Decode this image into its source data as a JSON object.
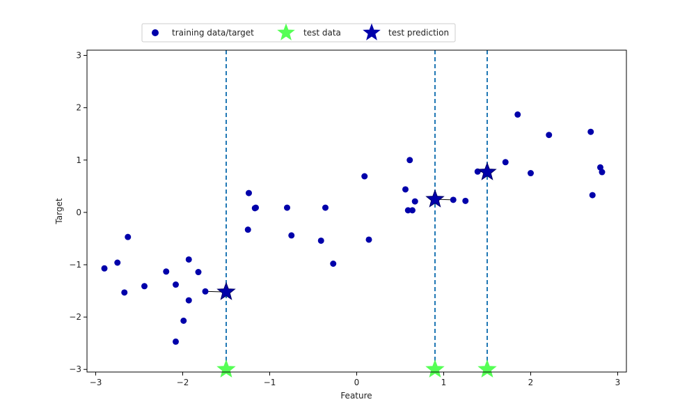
{
  "chart_data": {
    "type": "scatter",
    "title": "",
    "xlabel": "Feature",
    "ylabel": "Target",
    "xlim": [
      -3.1,
      3.1
    ],
    "ylim": [
      -3.05,
      3.1
    ],
    "xticks": [
      {
        "value": -3,
        "label": "−3"
      },
      {
        "value": -2,
        "label": "−2"
      },
      {
        "value": -1,
        "label": "−1"
      },
      {
        "value": 0,
        "label": "0"
      },
      {
        "value": 1,
        "label": "1"
      },
      {
        "value": 2,
        "label": "2"
      },
      {
        "value": 3,
        "label": "3"
      }
    ],
    "yticks": [
      {
        "value": -3,
        "label": "−3"
      },
      {
        "value": -2,
        "label": "−2"
      },
      {
        "value": -1,
        "label": "−1"
      },
      {
        "value": 0,
        "label": "0"
      },
      {
        "value": 1,
        "label": "1"
      },
      {
        "value": 2,
        "label": "2"
      },
      {
        "value": 3,
        "label": "3"
      }
    ],
    "grid": false,
    "legend_position": "top-center",
    "legend": [
      {
        "label": "training data/target",
        "marker": "circle",
        "color": "#0000aa"
      },
      {
        "label": "test data",
        "marker": "star",
        "color": "#55ff55"
      },
      {
        "label": "test prediction",
        "marker": "star",
        "color": "#0000aa"
      }
    ],
    "training_data": [
      {
        "x": -2.9,
        "y": -1.07
      },
      {
        "x": -2.75,
        "y": -0.96
      },
      {
        "x": -2.67,
        "y": -1.53
      },
      {
        "x": -2.63,
        "y": -0.47
      },
      {
        "x": -2.44,
        "y": -1.41
      },
      {
        "x": -2.19,
        "y": -1.13
      },
      {
        "x": -2.08,
        "y": -1.38
      },
      {
        "x": -2.08,
        "y": -2.47
      },
      {
        "x": -1.99,
        "y": -2.07
      },
      {
        "x": -1.93,
        "y": -0.9
      },
      {
        "x": -1.93,
        "y": -1.68
      },
      {
        "x": -1.82,
        "y": -1.14
      },
      {
        "x": -1.74,
        "y": -1.51
      },
      {
        "x": -1.24,
        "y": 0.37
      },
      {
        "x": -1.25,
        "y": -0.33
      },
      {
        "x": -1.17,
        "y": 0.08
      },
      {
        "x": -1.16,
        "y": 0.09
      },
      {
        "x": -0.8,
        "y": 0.09
      },
      {
        "x": -0.75,
        "y": -0.44
      },
      {
        "x": -0.41,
        "y": -0.54
      },
      {
        "x": -0.36,
        "y": 0.09
      },
      {
        "x": -0.27,
        "y": -0.98
      },
      {
        "x": 0.09,
        "y": 0.69
      },
      {
        "x": 0.14,
        "y": -0.52
      },
      {
        "x": 0.56,
        "y": 0.44
      },
      {
        "x": 0.59,
        "y": 0.04
      },
      {
        "x": 0.61,
        "y": 1.0
      },
      {
        "x": 0.64,
        "y": 0.04
      },
      {
        "x": 0.67,
        "y": 0.21
      },
      {
        "x": 1.11,
        "y": 0.24
      },
      {
        "x": 1.25,
        "y": 0.22
      },
      {
        "x": 1.39,
        "y": 0.78
      },
      {
        "x": 1.71,
        "y": 0.96
      },
      {
        "x": 1.85,
        "y": 1.87
      },
      {
        "x": 2.0,
        "y": 0.75
      },
      {
        "x": 2.21,
        "y": 1.48
      },
      {
        "x": 2.69,
        "y": 1.54
      },
      {
        "x": 2.71,
        "y": 0.33
      },
      {
        "x": 2.8,
        "y": 0.86
      },
      {
        "x": 2.82,
        "y": 0.77
      }
    ],
    "test_data": [
      {
        "x": -1.5,
        "y": -3.0
      },
      {
        "x": 0.9,
        "y": -3.0
      },
      {
        "x": 1.5,
        "y": -3.0
      }
    ],
    "test_prediction": [
      {
        "x": -1.5,
        "y": -1.52
      },
      {
        "x": 0.9,
        "y": 0.25
      },
      {
        "x": 1.5,
        "y": 0.77
      }
    ],
    "nearest_neighbor_links": [
      {
        "from": [
          -1.5,
          -1.52
        ],
        "to": [
          -1.74,
          -1.51
        ]
      },
      {
        "from": [
          0.9,
          0.25
        ],
        "to": [
          1.11,
          0.24
        ]
      },
      {
        "from": [
          1.5,
          0.77
        ],
        "to": [
          1.39,
          0.78
        ]
      }
    ],
    "vertical_lines_x": [
      -1.5,
      0.9,
      1.5
    ],
    "colors": {
      "training": "#0000aa",
      "test_data": "#55ff55",
      "test_prediction": "#0000aa",
      "vlines": "#1f77b4",
      "links": "#000000"
    }
  }
}
